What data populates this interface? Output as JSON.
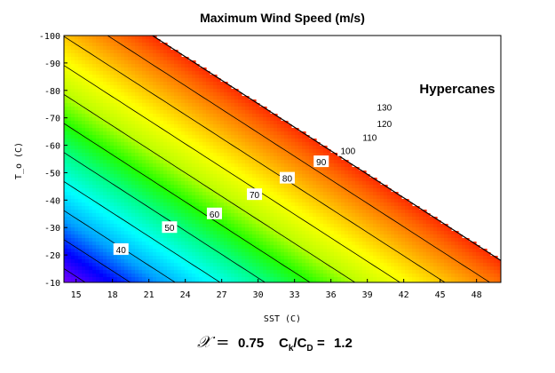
{
  "chart_data": {
    "type": "heatmap",
    "title": "Maximum Wind Speed (m/s)",
    "xlabel": "SST (C)",
    "ylabel": "T_o (C)",
    "xlim": [
      14,
      50
    ],
    "ylim": [
      -10,
      -100
    ],
    "x_ticks": [
      15,
      18,
      21,
      24,
      27,
      30,
      33,
      36,
      39,
      42,
      45,
      48
    ],
    "y_ticks": [
      -100,
      -90,
      -80,
      -70,
      -60,
      -50,
      -40,
      -30,
      -20,
      -10
    ],
    "colormap": [
      "#7a00ff",
      "#0000ff",
      "#00a0ff",
      "#00ffff",
      "#00ff90",
      "#20ff00",
      "#c0ff00",
      "#ffff00",
      "#ffb000",
      "#ff6000",
      "#ff0000"
    ],
    "value_range": [
      35,
      145
    ],
    "contour_levels": [
      40,
      50,
      60,
      70,
      80,
      90,
      100,
      110,
      120,
      130
    ],
    "contour_label_points": [
      {
        "label": "40",
        "x": 18.7,
        "y": -22
      },
      {
        "label": "50",
        "x": 22.7,
        "y": -30
      },
      {
        "label": "60",
        "x": 26.4,
        "y": -35
      },
      {
        "label": "70",
        "x": 29.7,
        "y": -42
      },
      {
        "label": "80",
        "x": 32.4,
        "y": -48
      },
      {
        "label": "90",
        "x": 35.2,
        "y": -54
      },
      {
        "label": "100",
        "x": 37.4,
        "y": -58
      },
      {
        "label": "110",
        "x": 39.2,
        "y": -63
      },
      {
        "label": "120",
        "x": 40.4,
        "y": -68
      },
      {
        "label": "130",
        "x": 40.4,
        "y": -74
      }
    ],
    "annotation": "Hypercanes",
    "annotation_x": 43.3,
    "annotation_y": -79
  },
  "footer": {
    "chi_symbol": "𝒳 =",
    "chi_value": "0.75",
    "ratio_prefix": "C",
    "ratio_sub1": "k",
    "ratio_mid": "/C",
    "ratio_sub2": "D",
    "ratio_eq": "=",
    "ratio_value": "1.2"
  }
}
